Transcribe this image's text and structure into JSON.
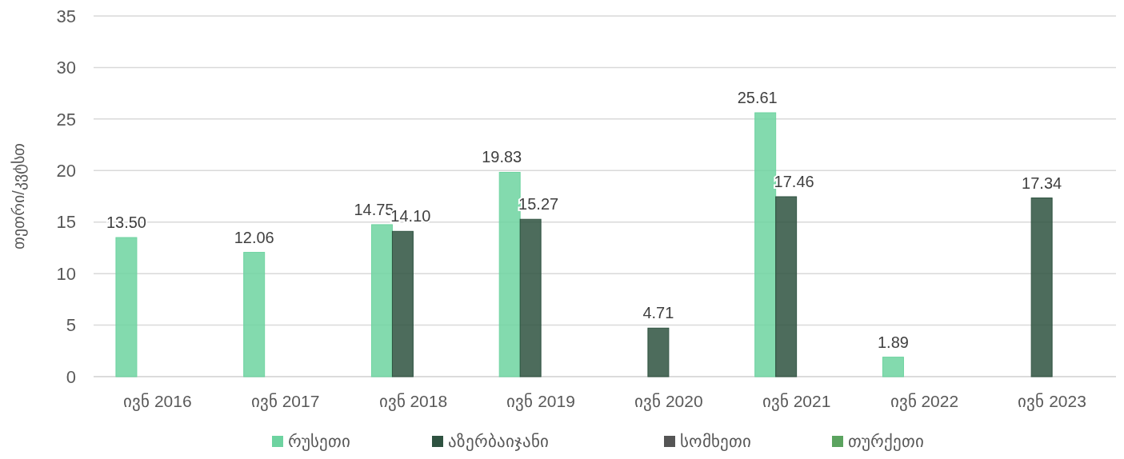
{
  "chart_data": {
    "type": "bar",
    "ylabel": "თეთრი/კვტსთ",
    "categories": [
      "ივნ 2016",
      "ივნ 2017",
      "ივნ 2018",
      "ივნ 2019",
      "ივნ 2020",
      "ივნ 2021",
      "ივნ 2022",
      "ივნ 2023"
    ],
    "series": [
      {
        "name": "რუსეთი",
        "color": "#6dd3a0",
        "values": [
          13.5,
          12.06,
          14.75,
          19.83,
          null,
          25.61,
          1.89,
          null
        ],
        "value_labels": [
          "13.50",
          "12.06",
          "14.75",
          "19.83",
          null,
          "25.61",
          "1.89",
          null
        ]
      },
      {
        "name": "აზერბაიჯანი",
        "color": "#2e5240",
        "values": [
          null,
          null,
          14.1,
          15.27,
          4.71,
          17.46,
          null,
          17.34
        ],
        "value_labels": [
          null,
          null,
          "14.10",
          "15.27",
          "4.71",
          "17.46",
          null,
          "17.34"
        ]
      },
      {
        "name": "სომხეთი",
        "color": "#555555",
        "values": [
          null,
          null,
          null,
          null,
          null,
          null,
          null,
          null
        ]
      },
      {
        "name": "თურქეთი",
        "color": "#5ba35f",
        "values": [
          null,
          null,
          null,
          null,
          null,
          null,
          null,
          null
        ]
      }
    ],
    "ylim": [
      0,
      35
    ],
    "yticks": [
      0,
      5,
      10,
      15,
      20,
      25,
      30,
      35
    ],
    "grid": "y",
    "legend": "bottom"
  }
}
